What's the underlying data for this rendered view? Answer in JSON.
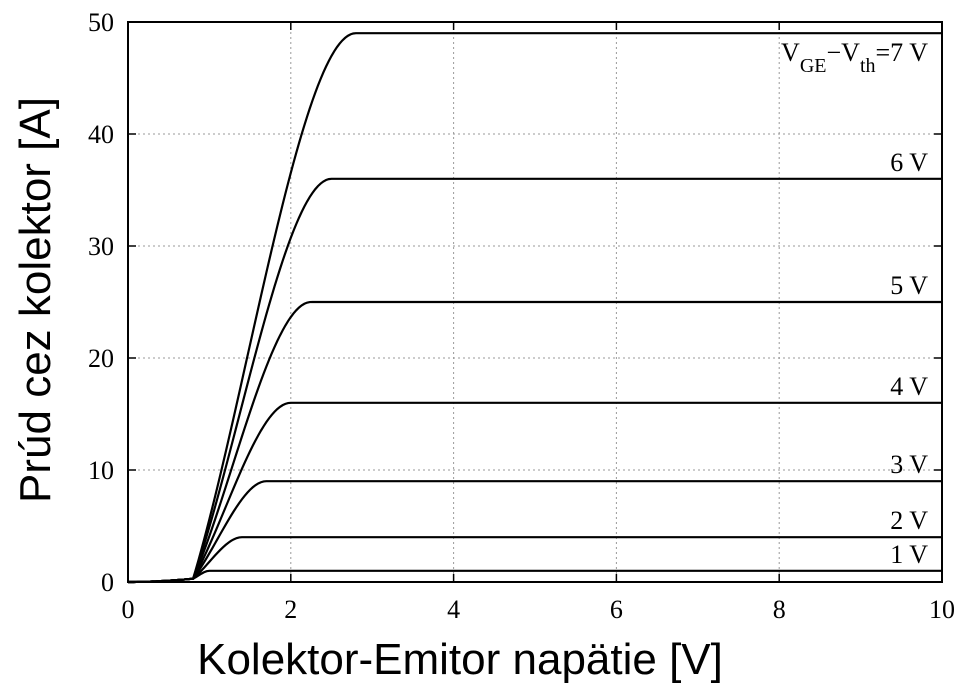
{
  "chart_data": {
    "type": "line",
    "title": "",
    "xlabel": "Kolektor-Emitor napätie [V]",
    "ylabel": "Prúd cez kolektor [A]",
    "xlim": [
      0,
      10
    ],
    "ylim": [
      0,
      50
    ],
    "xticks": [
      0,
      2,
      4,
      6,
      8,
      10
    ],
    "yticks": [
      0,
      10,
      20,
      30,
      40,
      50
    ],
    "grid": true,
    "curve_model": {
      "knee_voltage": 0.8,
      "leak_current": 0.3,
      "note_shape": "quadratic-like rise from knee to saturation"
    },
    "series": [
      {
        "label": "1 V",
        "saturation_current": 1.0,
        "saturation_voltage": 1.0
      },
      {
        "label": "2 V",
        "saturation_current": 4.0,
        "saturation_voltage": 1.4
      },
      {
        "label": "3 V",
        "saturation_current": 9.0,
        "saturation_voltage": 1.7
      },
      {
        "label": "4 V",
        "saturation_current": 16.0,
        "saturation_voltage": 2.0
      },
      {
        "label": "5 V",
        "saturation_current": 25.0,
        "saturation_voltage": 2.25
      },
      {
        "label": "6 V",
        "saturation_current": 36.0,
        "saturation_voltage": 2.5
      },
      {
        "label": "7 V",
        "saturation_current": 49.0,
        "saturation_voltage": 2.8,
        "label_prefix": "V",
        "label_sub1": "GE",
        "label_mid": "−V",
        "label_sub2": "th",
        "label_suffix": "=7 V"
      }
    ]
  }
}
